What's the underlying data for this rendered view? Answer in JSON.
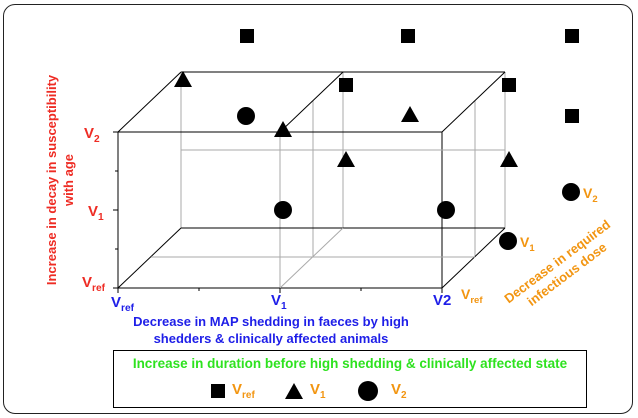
{
  "colors": {
    "red": "#ee2c24",
    "blue": "#1e1ee8",
    "orange": "#f29511",
    "green": "#2ee21f",
    "marker": "#000000",
    "frame": "#222222",
    "box": "#000000",
    "vertical": "#aaaaaa"
  },
  "y_axis": {
    "label_line1": "Increase in decay in susceptibility",
    "label_line2": "with age",
    "ticks": [
      {
        "base": "V",
        "sub": "ref"
      },
      {
        "base": "V",
        "sub": "1"
      },
      {
        "base": "V",
        "sub": "2"
      }
    ]
  },
  "x_axis": {
    "label_line1": "Decrease in MAP shedding in faeces by high",
    "label_line2": "shedders & clinically affected animals",
    "ticks": [
      {
        "base": "V",
        "sub": "ref"
      },
      {
        "base": "V",
        "sub": "1"
      },
      {
        "base": "V2",
        "sub": ""
      }
    ]
  },
  "z_axis": {
    "label_line1": "Decrease in required",
    "label_line2": "infectious dose",
    "ticks": [
      {
        "base": "V",
        "sub": "ref"
      },
      {
        "base": "V",
        "sub": "1"
      },
      {
        "base": "V",
        "sub": "2"
      }
    ]
  },
  "legend": {
    "title": "Increase in duration before high shedding & clinically affected state",
    "items": [
      {
        "shape": "square",
        "base": "V",
        "sub": "ref"
      },
      {
        "shape": "triangle",
        "base": "V",
        "sub": "1"
      },
      {
        "shape": "circle",
        "base": "V",
        "sub": "2"
      }
    ]
  },
  "icons": {
    "square": "square-marker-icon",
    "triangle": "triangle-marker-icon",
    "circle": "circle-marker-icon"
  }
}
